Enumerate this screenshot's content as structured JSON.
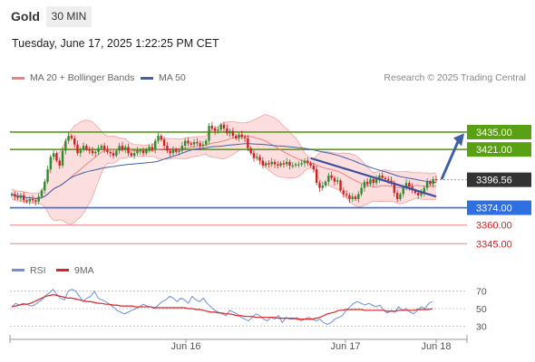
{
  "header": {
    "instrument": "Gold",
    "timeframe": "30 MIN",
    "datetime": "Tuesday, June 17, 2025 1:22:25 PM CET"
  },
  "legend": {
    "bollinger_label": "MA 20 + Bollinger Bands",
    "ma50_label": "MA 50",
    "credit": "Research © 2025 Trading Central"
  },
  "colors": {
    "bollinger": "#f08080",
    "band_fill": "#fbd8d8",
    "ma50": "#3f5fa8",
    "resistance": "#5aa015",
    "support": "#2f6fe0",
    "target": "#f08080",
    "bull": "#2e8b2e",
    "bear": "#cc2222",
    "rsi": "#6f8fd8",
    "rsi_ma": "#dd2222",
    "last_price_bg": "#333333",
    "trend": "#3a4f9e"
  },
  "chart_data": {
    "type": "candlestick",
    "ylim": [
      3335,
      3470
    ],
    "x_ticks": [
      "Jun 16",
      "Jun 17",
      "Jun 18"
    ],
    "levels": [
      {
        "label": "3435.00",
        "value": 3435.0,
        "kind": "resistance"
      },
      {
        "label": "3421.00",
        "value": 3421.0,
        "kind": "resistance"
      },
      {
        "label": "3374.00",
        "value": 3374.0,
        "kind": "support"
      },
      {
        "label": "3360.00",
        "value": 3360.0,
        "kind": "target"
      },
      {
        "label": "3345.00",
        "value": 3345.0,
        "kind": "target"
      }
    ],
    "last_price": {
      "label": "3396.56",
      "value": 3396.56
    },
    "trendline": {
      "from": 3414,
      "to": 3383
    },
    "arrow": {
      "from": 3397,
      "to": 3434
    },
    "close": [
      3385,
      3383,
      3382,
      3384,
      3380,
      3379,
      3381,
      3380,
      3379,
      3383,
      3388,
      3395,
      3405,
      3415,
      3418,
      3412,
      3408,
      3420,
      3428,
      3432,
      3430,
      3425,
      3418,
      3421,
      3424,
      3421,
      3420,
      3418,
      3419,
      3422,
      3424,
      3421,
      3419,
      3418,
      3416,
      3420,
      3424,
      3421,
      3423,
      3418,
      3416,
      3418,
      3420,
      3420,
      3418,
      3421,
      3423,
      3421,
      3428,
      3432,
      3429,
      3424,
      3420,
      3418,
      3421,
      3419,
      3420,
      3424,
      3428,
      3426,
      3425,
      3427,
      3426,
      3424,
      3425,
      3428,
      3440,
      3438,
      3436,
      3437,
      3441,
      3438,
      3434,
      3436,
      3432,
      3430,
      3433,
      3431,
      3430,
      3422,
      3418,
      3414,
      3415,
      3412,
      3408,
      3410,
      3409,
      3411,
      3409,
      3408,
      3410,
      3409,
      3411,
      3408,
      3408,
      3409,
      3409,
      3410,
      3412,
      3410,
      3408,
      3405,
      3394,
      3390,
      3392,
      3395,
      3400,
      3398,
      3395,
      3396,
      3388,
      3385,
      3384,
      3381,
      3383,
      3381,
      3385,
      3390,
      3395,
      3393,
      3397,
      3394,
      3397,
      3400,
      3398,
      3397,
      3396,
      3394,
      3386,
      3381,
      3385,
      3390,
      3394,
      3391,
      3388,
      3386,
      3384,
      3386,
      3390,
      3395,
      3393,
      3397,
      3396.56
    ],
    "rsi": {
      "levels": [
        70,
        50,
        30
      ],
      "series": [
        {
          "name": "RSI",
          "values": [
            52,
            56,
            54,
            56,
            55,
            53,
            54,
            57,
            60,
            65,
            68,
            72,
            66,
            62,
            60,
            70,
            72,
            70,
            64,
            58,
            62,
            64,
            70,
            62,
            60,
            58,
            55,
            52,
            48,
            46,
            44,
            46,
            48,
            50,
            52,
            55,
            53,
            52,
            50,
            54,
            58,
            60,
            64,
            62,
            58,
            62,
            60,
            56,
            64,
            60,
            58,
            62,
            56,
            52,
            48,
            46,
            44,
            42,
            48,
            46,
            44,
            40,
            38,
            36,
            40,
            44,
            42,
            38,
            36,
            40,
            38,
            42,
            34,
            40,
            38,
            38,
            40,
            36,
            38,
            40,
            38,
            36,
            38,
            34,
            32,
            34,
            38,
            40,
            42,
            48,
            52,
            56,
            58,
            56,
            54,
            56,
            54,
            52,
            54,
            48,
            45,
            48,
            46,
            52,
            48,
            50,
            46,
            44,
            48,
            52,
            50,
            56,
            58
          ]
        },
        {
          "name": "9MA",
          "values": [
            52,
            53,
            54,
            55,
            55,
            56,
            58,
            60,
            62,
            64,
            65,
            66,
            65,
            64,
            63,
            62,
            62,
            61,
            60,
            59,
            58,
            58,
            57,
            56,
            56,
            55,
            55,
            54,
            54,
            53,
            53,
            53,
            53,
            52,
            52,
            52,
            52,
            52,
            51,
            51,
            51,
            51,
            51,
            51,
            51,
            51,
            51,
            50,
            50,
            49,
            49,
            48,
            47,
            46,
            46,
            45,
            45,
            44,
            44,
            43,
            42,
            42,
            41,
            41,
            41,
            40,
            40,
            40,
            40,
            40,
            40,
            39,
            39,
            39,
            39,
            39,
            38,
            38,
            38,
            38,
            38,
            39,
            40,
            42,
            44,
            45,
            46,
            48,
            48,
            49,
            49,
            49,
            49,
            49,
            48,
            48,
            48,
            48,
            48,
            48,
            47,
            47,
            47,
            48,
            48,
            48,
            48,
            48,
            49,
            49,
            49,
            49,
            50
          ]
        }
      ]
    }
  }
}
